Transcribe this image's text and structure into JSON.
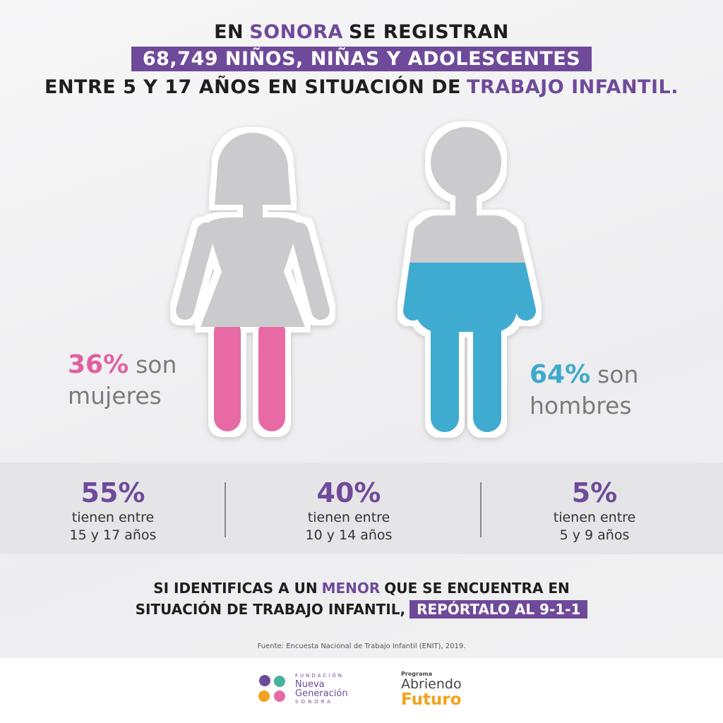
{
  "header": {
    "line1": [
      "EN",
      "SONORA",
      "SE REGISTRAN"
    ],
    "line2": "68,749 NIÑOS, NIÑAS Y ADOLESCENTES",
    "line3": [
      "ENTRE 5 Y 17 AÑOS EN SITUACIÓN DE",
      "TRABAJO INFANTIL."
    ]
  },
  "gender": {
    "girls": {
      "percent": "36%",
      "word": "son",
      "label": "mujeres"
    },
    "boys": {
      "percent": "64%",
      "word": "son",
      "label": "hombres"
    }
  },
  "ages": [
    {
      "percent": "55%",
      "line1": "tienen entre",
      "line2": "15 y 17 años"
    },
    {
      "percent": "40%",
      "line1": "tienen entre",
      "line2": "10 y 14 años"
    },
    {
      "percent": "5%",
      "line1": "tienen entre",
      "line2": "5 y 9 años"
    }
  ],
  "call": {
    "line1": [
      "SI IDENTIFICAS A UN",
      "MENOR",
      "QUE SE ENCUENTRA EN"
    ],
    "line2": [
      "SITUACIÓN DE TRABAJO INFANTIL,",
      "REPÓRTALO AL 9-1-1"
    ]
  },
  "source": "Fuente: Encuesta Nacional de Trabajo Infantil (ENIT), 2019.",
  "logos": {
    "foundation": [
      "FUNDACIÓN",
      "Nueva",
      "Generación",
      "SONORA"
    ],
    "program": [
      "Programa",
      "Abriendo",
      "Futuro"
    ]
  }
}
